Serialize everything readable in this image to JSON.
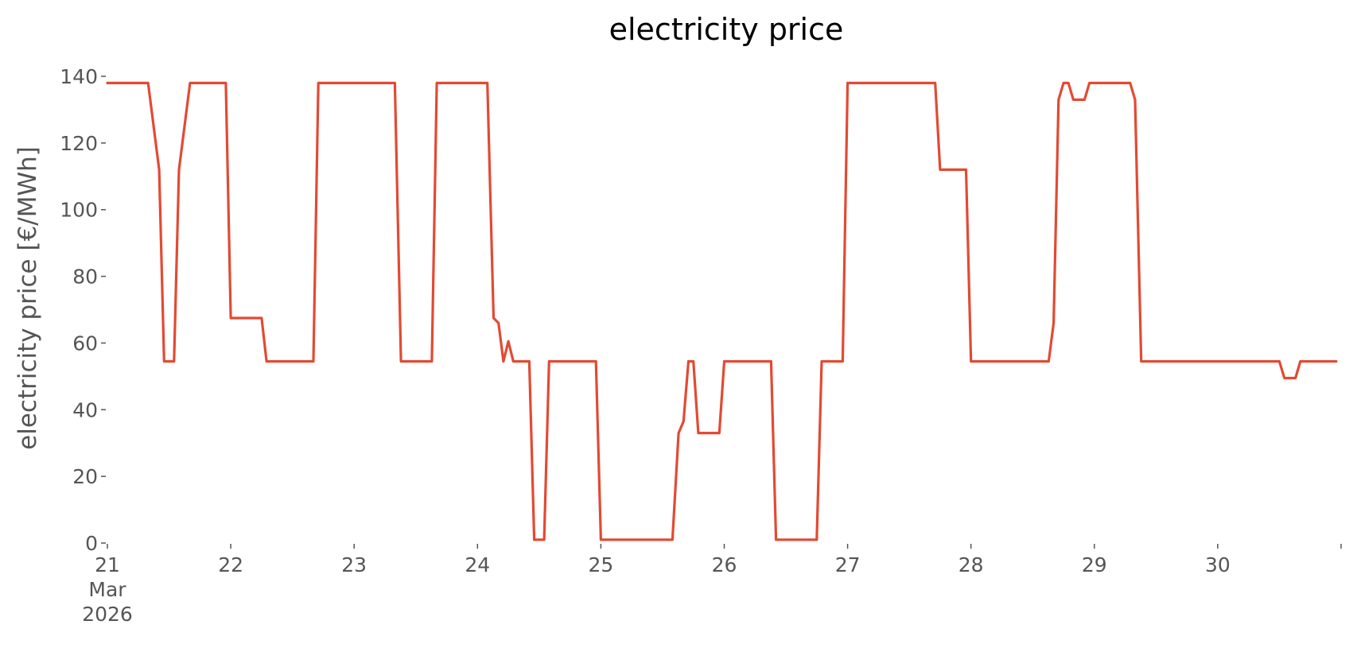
{
  "chart_data": {
    "type": "line",
    "title": "electricity price",
    "xlabel": "",
    "ylabel": "electricity price [€/MWh]",
    "xlim": [
      0,
      10
    ],
    "ylim": [
      0,
      140
    ],
    "yticks": [
      0,
      20,
      40,
      60,
      80,
      100,
      120,
      140
    ],
    "xticks": [
      {
        "value": 0,
        "lines": [
          "21",
          "Mar",
          "2026"
        ]
      },
      {
        "value": 1,
        "lines": [
          "22"
        ]
      },
      {
        "value": 2,
        "lines": [
          "23"
        ]
      },
      {
        "value": 3,
        "lines": [
          "24"
        ]
      },
      {
        "value": 4,
        "lines": [
          "25"
        ]
      },
      {
        "value": 5,
        "lines": [
          "26"
        ]
      },
      {
        "value": 6,
        "lines": [
          "27"
        ]
      },
      {
        "value": 7,
        "lines": [
          "28"
        ]
      },
      {
        "value": 8,
        "lines": [
          "29"
        ]
      },
      {
        "value": 9,
        "lines": [
          "30"
        ]
      },
      {
        "value": 10,
        "lines": [
          ""
        ]
      }
    ],
    "grid": false,
    "series": [
      {
        "color": "#E24A33",
        "x": [
          0,
          0.33,
          0.42,
          0.46,
          0.54,
          0.58,
          0.67,
          0.96,
          1.0,
          1.25,
          1.29,
          1.67,
          1.71,
          2.33,
          2.38,
          2.63,
          2.67,
          3.08,
          3.13,
          3.17,
          3.21,
          3.25,
          3.29,
          3.42,
          3.46,
          3.54,
          3.58,
          3.96,
          4.0,
          4.58,
          4.63,
          4.67,
          4.71,
          4.75,
          4.79,
          4.96,
          5.0,
          5.38,
          5.42,
          5.75,
          5.79,
          5.96,
          6.0,
          6.71,
          6.75,
          6.96,
          7.0,
          7.63,
          7.67,
          7.71,
          7.75,
          7.79,
          7.83,
          7.92,
          7.96,
          8.29,
          8.33,
          8.38,
          9.5,
          9.54,
          9.63,
          9.67,
          9.96
        ],
        "y": [
          138,
          138,
          112,
          54.5,
          54.5,
          112,
          138,
          138,
          67.5,
          67.5,
          54.5,
          54.5,
          138,
          138,
          54.5,
          54.5,
          138,
          138,
          67.5,
          66,
          54.5,
          60.5,
          54.5,
          54.5,
          1,
          1,
          54.5,
          54.5,
          1,
          1,
          33,
          36.5,
          54.5,
          54.5,
          33,
          33,
          54.5,
          54.5,
          1,
          1,
          54.5,
          54.5,
          138,
          138,
          112,
          112,
          54.5,
          54.5,
          66,
          133,
          138,
          138,
          133,
          133,
          138,
          138,
          133,
          54.5,
          54.5,
          49.5,
          49.5,
          54.5,
          54.5
        ]
      }
    ]
  }
}
